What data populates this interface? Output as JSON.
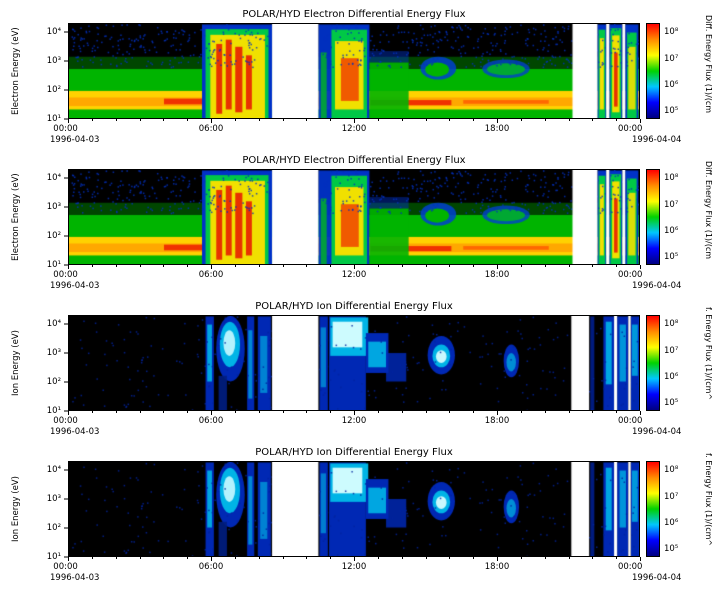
{
  "chart_data": {
    "type": "heatmap",
    "panels": [
      {
        "type": "heatmap",
        "species": "electron",
        "title": "POLAR/HYD Electron Differential Energy Flux",
        "ylabel": "Electron Energy (eV)",
        "y_tick_labels": [
          "10⁴",
          "10³",
          "10²",
          "10¹"
        ],
        "y_tick_values": [
          4,
          3,
          2,
          1
        ],
        "y_log_range": [
          1.0,
          4.3
        ],
        "x_tick_labels": [
          "00:00",
          "06:00",
          "12:00",
          "18:00",
          "00:00"
        ],
        "x_tick_hours": [
          0,
          6,
          12,
          18,
          24
        ],
        "x_range_hours": [
          0,
          24
        ],
        "start_date": "1996-04-03",
        "end_date": "1996-04-04",
        "gaps_hours": [
          [
            8.55,
            10.5
          ],
          [
            21.2,
            22.25
          ],
          [
            22.62,
            22.75
          ],
          [
            23.3,
            23.42
          ]
        ],
        "speckle": {
          "count": 650,
          "color": "#0030c0",
          "e_range": [
            2.8,
            4.3
          ]
        },
        "colorbar": {
          "label": "Diff. Energy Flux (1)/(cm",
          "tick_labels": [
            "10⁸",
            "10⁷",
            "10⁶",
            "10⁵"
          ],
          "tick_values": [
            8,
            7,
            6,
            5
          ],
          "log_range": [
            4.7,
            8.35
          ],
          "stops": [
            "#000082",
            "#0000ff",
            "#00c8ff",
            "#00d200",
            "#ffff00",
            "#ff8c00",
            "#ff0000"
          ]
        }
      },
      {
        "type": "heatmap",
        "species": "electron",
        "title": "POLAR/HYD Electron Differential Energy Flux",
        "ylabel": "Electron Energy (eV)",
        "y_tick_labels": [
          "10⁴",
          "10³",
          "10²",
          "10¹"
        ],
        "y_tick_values": [
          4,
          3,
          2,
          1
        ],
        "y_log_range": [
          1.0,
          4.3
        ],
        "x_tick_labels": [
          "00:00",
          "06:00",
          "12:00",
          "18:00",
          "00:00"
        ],
        "x_tick_hours": [
          0,
          6,
          12,
          18,
          24
        ],
        "x_range_hours": [
          0,
          24
        ],
        "start_date": "1996-04-03",
        "end_date": "1996-04-04",
        "gaps_hours": [
          [
            8.55,
            10.5
          ],
          [
            21.2,
            22.25
          ],
          [
            22.62,
            22.75
          ],
          [
            23.3,
            23.42
          ]
        ],
        "speckle": {
          "count": 650,
          "color": "#0030c0",
          "e_range": [
            2.8,
            4.3
          ]
        },
        "colorbar": {
          "label": "Diff. Energy Flux (1)/(cm",
          "tick_labels": [
            "10⁸",
            "10⁷",
            "10⁶",
            "10⁵"
          ],
          "tick_values": [
            8,
            7,
            6,
            5
          ],
          "log_range": [
            4.7,
            8.35
          ],
          "stops": [
            "#000082",
            "#0000ff",
            "#00c8ff",
            "#00d200",
            "#ffff00",
            "#ff8c00",
            "#ff0000"
          ]
        }
      },
      {
        "type": "heatmap",
        "species": "ion",
        "title": "POLAR/HYD Ion Differential Energy Flux",
        "ylabel": "Ion Energy (eV)",
        "y_tick_labels": [
          "10⁴",
          "10³",
          "10²",
          "10¹"
        ],
        "y_tick_values": [
          4,
          3,
          2,
          1
        ],
        "y_log_range": [
          1.0,
          4.3
        ],
        "x_tick_labels": [
          "00:00",
          "06:00",
          "12:00",
          "18:00",
          "00:00"
        ],
        "x_tick_hours": [
          0,
          6,
          12,
          18,
          24
        ],
        "x_range_hours": [
          0,
          24
        ],
        "start_date": "1996-04-03",
        "end_date": "1996-04-04",
        "gaps_hours": [
          [
            8.55,
            10.5
          ],
          [
            21.15,
            21.9
          ],
          [
            22.95,
            23.08
          ],
          [
            23.55,
            23.65
          ]
        ],
        "speckle": {
          "count": 300,
          "color": "#0024a0",
          "e_range": [
            1.0,
            4.3
          ]
        },
        "colorbar": {
          "label": "f. Energy Flux (1)/(cm^",
          "tick_labels": [
            "10⁸",
            "10⁷",
            "10⁶",
            "10⁵"
          ],
          "tick_values": [
            8,
            7,
            6,
            5
          ],
          "log_range": [
            4.7,
            8.35
          ],
          "stops": [
            "#000082",
            "#0000ff",
            "#00c8ff",
            "#00d200",
            "#ffff00",
            "#ff8c00",
            "#ff0000"
          ]
        }
      },
      {
        "type": "heatmap",
        "species": "ion",
        "title": "POLAR/HYD Ion Differential Energy Flux",
        "ylabel": "Ion Energy (eV)",
        "y_tick_labels": [
          "10⁴",
          "10³",
          "10²",
          "10¹"
        ],
        "y_tick_values": [
          4,
          3,
          2,
          1
        ],
        "y_log_range": [
          1.0,
          4.3
        ],
        "x_tick_labels": [
          "00:00",
          "06:00",
          "12:00",
          "18:00",
          "00:00"
        ],
        "x_tick_hours": [
          0,
          6,
          12,
          18,
          24
        ],
        "x_range_hours": [
          0,
          24
        ],
        "start_date": "1996-04-03",
        "end_date": "1996-04-04",
        "gaps_hours": [
          [
            8.55,
            10.5
          ],
          [
            21.15,
            21.9
          ],
          [
            22.95,
            23.08
          ],
          [
            23.55,
            23.65
          ]
        ],
        "speckle": {
          "count": 300,
          "color": "#0024a0",
          "e_range": [
            1.0,
            4.3
          ]
        },
        "colorbar": {
          "label": "f. Energy Flux (1)/(cm^",
          "tick_labels": [
            "10⁸",
            "10⁷",
            "10⁶",
            "10⁵"
          ],
          "tick_values": [
            8,
            7,
            6,
            5
          ],
          "log_range": [
            4.7,
            8.35
          ],
          "stops": [
            "#000082",
            "#0000ff",
            "#00c8ff",
            "#00d200",
            "#ffff00",
            "#ff8c00",
            "#ff0000"
          ]
        }
      }
    ],
    "feature_sets": {
      "electron": [
        {
          "t": [
            0,
            24
          ],
          "e": [
            1.0,
            2.72
          ],
          "c": "#00b400"
        },
        {
          "t": [
            0,
            24
          ],
          "e": [
            2.72,
            3.15
          ],
          "c": "#008000",
          "a": 0.55
        },
        {
          "t": [
            0,
            24
          ],
          "e": [
            1.3,
            1.95
          ],
          "c": "#ffd200"
        },
        {
          "t": [
            0,
            24
          ],
          "e": [
            1.42,
            1.72
          ],
          "c": "#ffa800"
        },
        {
          "t": [
            4.0,
            5.6
          ],
          "e": [
            1.48,
            1.68
          ],
          "c": "#f03200"
        },
        {
          "t": [
            12.7,
            16.1
          ],
          "e": [
            1.45,
            1.63
          ],
          "c": "#f03200"
        },
        {
          "t": [
            16.6,
            20.2
          ],
          "e": [
            1.5,
            1.63
          ],
          "c": "#ff6400",
          "a": 0.95
        },
        {
          "t": [
            5.6,
            8.55
          ],
          "e": [
            1.0,
            4.28
          ],
          "c": "#0032c8"
        },
        {
          "t": [
            5.75,
            8.4
          ],
          "e": [
            1.0,
            4.12
          ],
          "c": "#00c846"
        },
        {
          "t": [
            5.95,
            8.25
          ],
          "e": [
            1.0,
            3.92
          ],
          "c": "#f0e000"
        },
        {
          "t": [
            6.2,
            6.45
          ],
          "e": [
            1.15,
            3.6
          ],
          "c": "#e83200"
        },
        {
          "t": [
            6.6,
            6.85
          ],
          "e": [
            1.3,
            3.75
          ],
          "c": "#e83200"
        },
        {
          "t": [
            7.0,
            7.3
          ],
          "e": [
            1.2,
            3.5
          ],
          "c": "#e83200"
        },
        {
          "t": [
            7.45,
            7.7
          ],
          "e": [
            1.3,
            3.2
          ],
          "c": "#e83200"
        },
        {
          "t": [
            10.5,
            10.95
          ],
          "e": [
            1.0,
            4.28
          ],
          "c": "#0032c8",
          "a": 0.95
        },
        {
          "t": [
            10.6,
            10.85
          ],
          "e": [
            1.0,
            3.3
          ],
          "c": "#00a832",
          "a": 0.9
        },
        {
          "t": [
            10.95,
            12.65
          ],
          "e": [
            1.0,
            4.28
          ],
          "c": "#0032c8"
        },
        {
          "t": [
            11.05,
            12.55
          ],
          "e": [
            1.0,
            4.1
          ],
          "c": "#00c846"
        },
        {
          "t": [
            11.2,
            12.4
          ],
          "e": [
            1.3,
            3.7
          ],
          "c": "#f0e000"
        },
        {
          "t": [
            11.45,
            12.2
          ],
          "e": [
            1.6,
            3.1
          ],
          "c": "#f05a00"
        },
        {
          "t": [
            12.65,
            14.3
          ],
          "e": [
            1.0,
            2.95
          ],
          "c": "#00b400",
          "a": 0.9
        },
        {
          "t": [
            12.65,
            14.3
          ],
          "e": [
            2.95,
            3.35
          ],
          "c": "#0032c8",
          "a": 0.45
        },
        {
          "t": [
            14.8,
            16.3
          ],
          "e": [
            2.35,
            3.15
          ],
          "c": "#0040d0",
          "a": 0.85,
          "s": "e"
        },
        {
          "t": [
            15.0,
            16.0
          ],
          "e": [
            2.45,
            2.95
          ],
          "c": "#00b400",
          "s": "e"
        },
        {
          "t": [
            17.4,
            19.4
          ],
          "e": [
            2.4,
            3.05
          ],
          "c": "#0040d0",
          "a": 0.8,
          "s": "e"
        },
        {
          "t": [
            17.6,
            19.2
          ],
          "e": [
            2.5,
            2.92
          ],
          "c": "#00a832",
          "s": "e"
        },
        {
          "t": [
            22.25,
            22.62
          ],
          "e": [
            1.0,
            4.28
          ],
          "c": "#0032c8"
        },
        {
          "t": [
            22.3,
            22.58
          ],
          "e": [
            1.0,
            4.1
          ],
          "c": "#00c846"
        },
        {
          "t": [
            22.35,
            22.52
          ],
          "e": [
            1.3,
            3.8
          ],
          "c": "#f0e000"
        },
        {
          "t": [
            22.75,
            23.3
          ],
          "e": [
            1.0,
            4.28
          ],
          "c": "#0032c8"
        },
        {
          "t": [
            22.8,
            23.25
          ],
          "e": [
            1.0,
            4.15
          ],
          "c": "#00c846"
        },
        {
          "t": [
            22.87,
            23.18
          ],
          "e": [
            1.2,
            3.9
          ],
          "c": "#f0e000"
        },
        {
          "t": [
            22.95,
            23.1
          ],
          "e": [
            1.4,
            3.3
          ],
          "c": "#e83200"
        },
        {
          "t": [
            23.42,
            23.97
          ],
          "e": [
            1.0,
            4.28
          ],
          "c": "#0032c8"
        },
        {
          "t": [
            23.5,
            23.9
          ],
          "e": [
            1.0,
            4.0
          ],
          "c": "#00c846"
        },
        {
          "t": [
            23.55,
            23.85
          ],
          "e": [
            1.3,
            3.5
          ],
          "c": "#f0e000",
          "a": 0.9
        }
      ],
      "ion": [
        {
          "t": [
            5.75,
            6.1
          ],
          "e": [
            1.0,
            4.28
          ],
          "c": "#0028b4"
        },
        {
          "t": [
            5.82,
            6.02
          ],
          "e": [
            2.0,
            4.0
          ],
          "c": "#00b4e6",
          "a": 0.9
        },
        {
          "t": [
            6.2,
            7.4
          ],
          "e": [
            2.0,
            4.3
          ],
          "c": "#0028b4",
          "s": "e"
        },
        {
          "t": [
            6.35,
            7.2
          ],
          "e": [
            2.5,
            4.1
          ],
          "c": "#00b4e6",
          "s": "e"
        },
        {
          "t": [
            6.5,
            7.0
          ],
          "e": [
            2.9,
            3.8
          ],
          "c": "#c8f8ff",
          "s": "e",
          "a": 0.9
        },
        {
          "t": [
            6.3,
            6.65
          ],
          "e": [
            1.0,
            2.2
          ],
          "c": "#001e82",
          "a": 0.9
        },
        {
          "t": [
            7.5,
            7.8
          ],
          "e": [
            1.0,
            4.28
          ],
          "c": "#0028b4"
        },
        {
          "t": [
            7.55,
            7.72
          ],
          "e": [
            1.4,
            3.8
          ],
          "c": "#0092d8",
          "a": 0.9
        },
        {
          "t": [
            7.95,
            8.5
          ],
          "e": [
            1.0,
            4.28
          ],
          "c": "#0028b4"
        },
        {
          "t": [
            8.05,
            8.35
          ],
          "e": [
            1.6,
            3.6
          ],
          "c": "#0092d8",
          "a": 0.85
        },
        {
          "t": [
            10.55,
            10.9
          ],
          "e": [
            1.0,
            4.28
          ],
          "c": "#0028b4"
        },
        {
          "t": [
            10.6,
            10.82
          ],
          "e": [
            1.8,
            3.9
          ],
          "c": "#0092d8",
          "a": 0.8
        },
        {
          "t": [
            10.95,
            12.5
          ],
          "e": [
            1.0,
            4.28
          ],
          "c": "#0028b4"
        },
        {
          "t": [
            11.0,
            12.6
          ],
          "e": [
            2.9,
            4.25
          ],
          "c": "#00b4e6"
        },
        {
          "t": [
            11.1,
            12.35
          ],
          "e": [
            3.2,
            4.1
          ],
          "c": "#d8ffff",
          "a": 0.95
        },
        {
          "t": [
            12.5,
            13.45
          ],
          "e": [
            2.3,
            3.7
          ],
          "c": "#0028b4"
        },
        {
          "t": [
            12.6,
            13.35
          ],
          "e": [
            2.5,
            3.4
          ],
          "c": "#00b4e6",
          "a": 0.9
        },
        {
          "t": [
            13.35,
            14.2
          ],
          "e": [
            2.0,
            3.0
          ],
          "c": "#0028b4",
          "a": 0.85
        },
        {
          "t": [
            15.1,
            16.25
          ],
          "e": [
            2.25,
            3.6
          ],
          "c": "#0028b4",
          "s": "e"
        },
        {
          "t": [
            15.3,
            16.05
          ],
          "e": [
            2.5,
            3.3
          ],
          "c": "#00b4e6",
          "s": "e"
        },
        {
          "t": [
            15.45,
            15.9
          ],
          "e": [
            2.65,
            3.1
          ],
          "c": "#e0ffff",
          "s": "e",
          "a": 0.9
        },
        {
          "t": [
            18.3,
            18.95
          ],
          "e": [
            2.15,
            3.3
          ],
          "c": "#0028b4",
          "s": "e"
        },
        {
          "t": [
            18.42,
            18.82
          ],
          "e": [
            2.35,
            3.0
          ],
          "c": "#0098d8",
          "s": "e",
          "a": 0.9
        },
        {
          "t": [
            21.95,
            22.12
          ],
          "e": [
            1.0,
            4.28
          ],
          "c": "#001e8c",
          "a": 0.9
        },
        {
          "t": [
            22.5,
            22.95
          ],
          "e": [
            1.0,
            4.28
          ],
          "c": "#0028b4"
        },
        {
          "t": [
            22.6,
            22.85
          ],
          "e": [
            1.9,
            4.1
          ],
          "c": "#00b4e6",
          "a": 0.9
        },
        {
          "t": [
            23.08,
            23.55
          ],
          "e": [
            1.0,
            4.28
          ],
          "c": "#0028b4"
        },
        {
          "t": [
            23.18,
            23.45
          ],
          "e": [
            2.0,
            4.0
          ],
          "c": "#00a8e0",
          "a": 0.85
        },
        {
          "t": [
            23.65,
            24
          ],
          "e": [
            1.0,
            4.28
          ],
          "c": "#0028b4"
        },
        {
          "t": [
            23.7,
            23.95
          ],
          "e": [
            2.2,
            4.0
          ],
          "c": "#00b4e6",
          "a": 0.8
        }
      ]
    }
  }
}
